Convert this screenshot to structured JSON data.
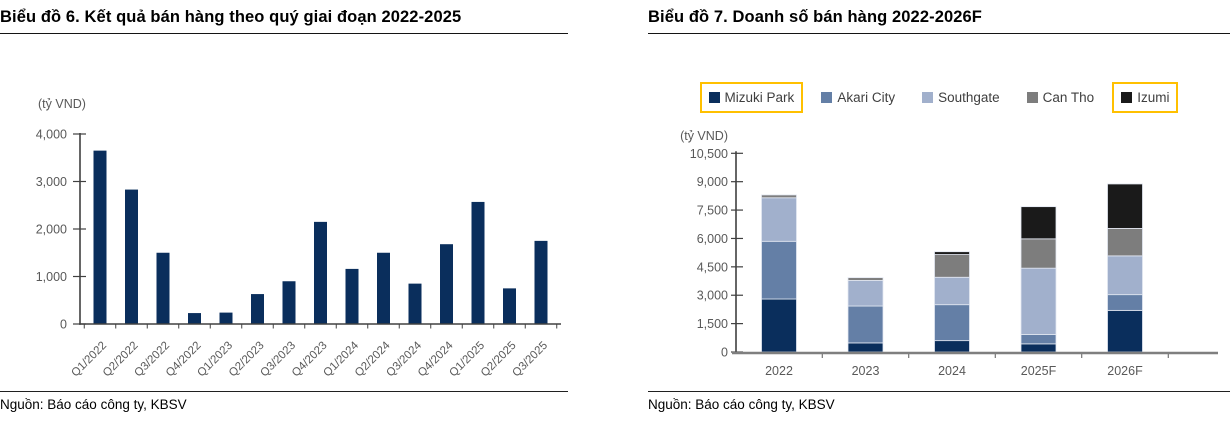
{
  "panels": [
    {
      "title": "Biểu đồ 6. Kết quả bán hàng theo quý giai đoạn 2022-2025",
      "unit_label": "(tỷ VND)",
      "source": "Nguồn: Báo cáo công ty, KBSV"
    },
    {
      "title": "Biểu đồ 7. Doanh số bán hàng 2022-2026F",
      "unit_label": "(tỷ VND)",
      "source": "Nguồn: Báo cáo công ty, KBSV"
    }
  ],
  "colors": {
    "navy": "#0A2E5C",
    "steel_blue": "#647FA6",
    "light_blue": "#A1B0CC",
    "gray": "#7D7D7D",
    "black": "#1A1A1A",
    "highlight_box": "#FFC000",
    "axis": "#404040",
    "baseline_gray": "#7F7F7F",
    "tick_label": "#595959",
    "segment_outline": "#E3E8F2"
  },
  "chart_data": [
    {
      "type": "bar",
      "title": "Biểu đồ 6. Kết quả bán hàng theo quý giai đoạn 2022-2025",
      "ylabel": "(tỷ VND)",
      "categories": [
        "Q1/2022",
        "Q2/2022",
        "Q3/2022",
        "Q4/2022",
        "Q1/2023",
        "Q2/2023",
        "Q3/2023",
        "Q4/2023",
        "Q1/2024",
        "Q2/2024",
        "Q3/2024",
        "Q4/2024",
        "Q1/2025",
        "Q2/2025",
        "Q3/2025"
      ],
      "values": [
        3650,
        2830,
        1500,
        230,
        240,
        630,
        900,
        2150,
        1160,
        1500,
        850,
        1680,
        2570,
        750,
        1750
      ],
      "ylim": [
        0,
        4000
      ],
      "yticks": [
        0,
        1000,
        2000,
        3000,
        4000
      ],
      "bar_color": "#0A2E5C",
      "grid": false,
      "legend_position": "none"
    },
    {
      "type": "stacked-bar",
      "title": "Biểu đồ 7. Doanh số bán hàng 2022-2026F",
      "ylabel": "(tỷ VND)",
      "categories": [
        "2022",
        "2023",
        "2024",
        "2025F",
        "2026F"
      ],
      "series": [
        {
          "name": "Mizuki Park",
          "color": "#0A2E5C",
          "highlighted": true,
          "values": [
            2800,
            480,
            600,
            430,
            2200
          ]
        },
        {
          "name": "Akari City",
          "color": "#647FA6",
          "highlighted": false,
          "values": [
            3050,
            1950,
            1900,
            500,
            830
          ]
        },
        {
          "name": "Southgate",
          "color": "#A1B0CC",
          "highlighted": false,
          "values": [
            2300,
            1350,
            1450,
            3500,
            2050
          ]
        },
        {
          "name": "Can Tho",
          "color": "#7D7D7D",
          "highlighted": false,
          "values": [
            150,
            150,
            1200,
            1550,
            1450
          ]
        },
        {
          "name": "Izumi",
          "color": "#1A1A1A",
          "highlighted": true,
          "values": [
            0,
            0,
            150,
            1700,
            2350
          ]
        }
      ],
      "ylim": [
        0,
        10500
      ],
      "yticks": [
        0,
        1500,
        3000,
        4500,
        6000,
        7500,
        9000,
        10500
      ],
      "grid": false,
      "legend_position": "top",
      "legend_highlight_color": "#FFC000"
    }
  ]
}
